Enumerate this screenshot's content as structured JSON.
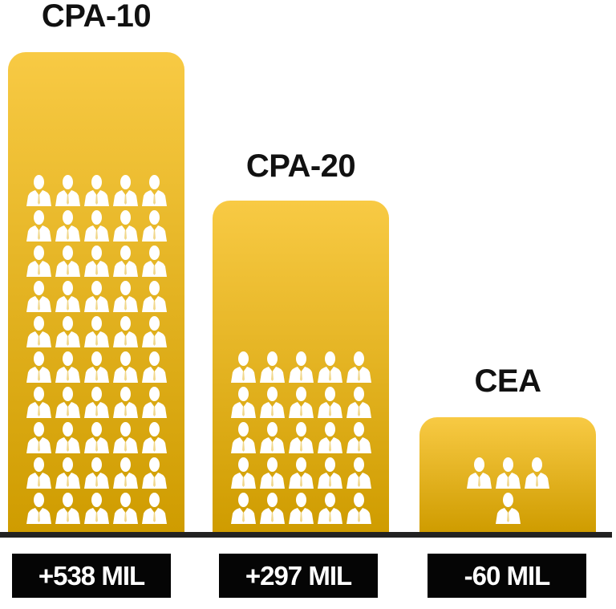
{
  "chart_data": {
    "type": "bar",
    "categories": [
      "CPA-10",
      "CPA-20",
      "CEA"
    ],
    "values": [
      538,
      297,
      -60
    ],
    "value_labels": [
      "+538 MIL",
      "+297 MIL",
      "-60 MIL"
    ],
    "unit": "MIL",
    "people_icons": [
      50,
      25,
      4
    ],
    "colors": {
      "bar_top": "#f8ca44",
      "bar_bottom": "#cf9c00",
      "label_bg": "#050505",
      "icon": "#ffffff"
    }
  }
}
